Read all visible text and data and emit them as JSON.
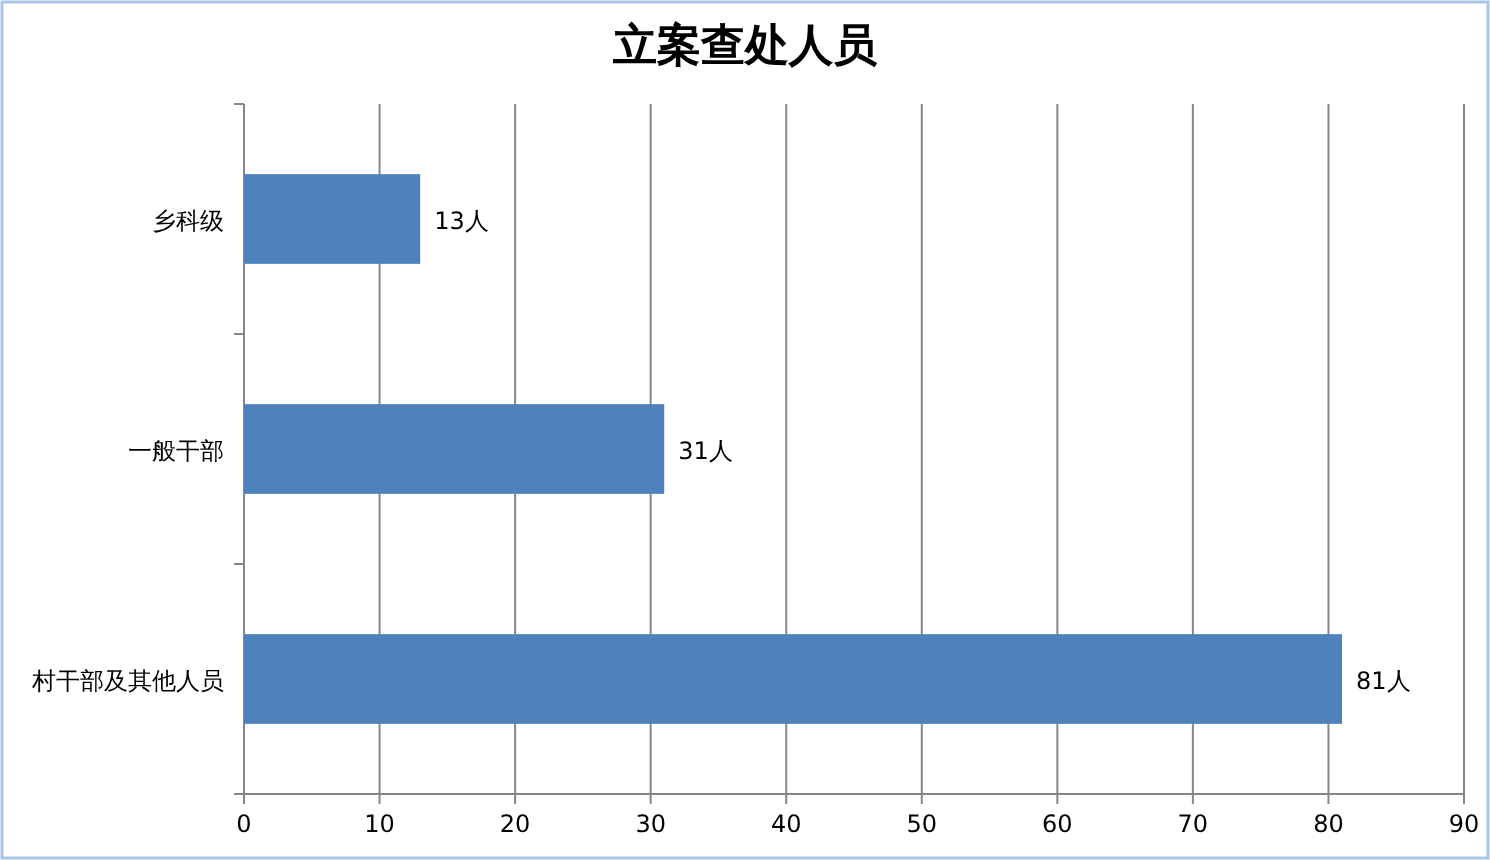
{
  "chart_data": {
    "type": "bar",
    "title": "立案查处人员",
    "orientation": "horizontal",
    "categories": [
      "乡科级",
      "一般干部",
      "村干部及其他人员"
    ],
    "values": [
      13,
      31,
      81
    ],
    "value_labels": [
      "13人",
      "31人",
      "81人"
    ],
    "color": "#4f81bd",
    "xlim": [
      0,
      90
    ],
    "xticks": [
      0,
      10,
      20,
      30,
      40,
      50,
      60,
      70,
      80,
      90
    ],
    "grid": "x"
  }
}
